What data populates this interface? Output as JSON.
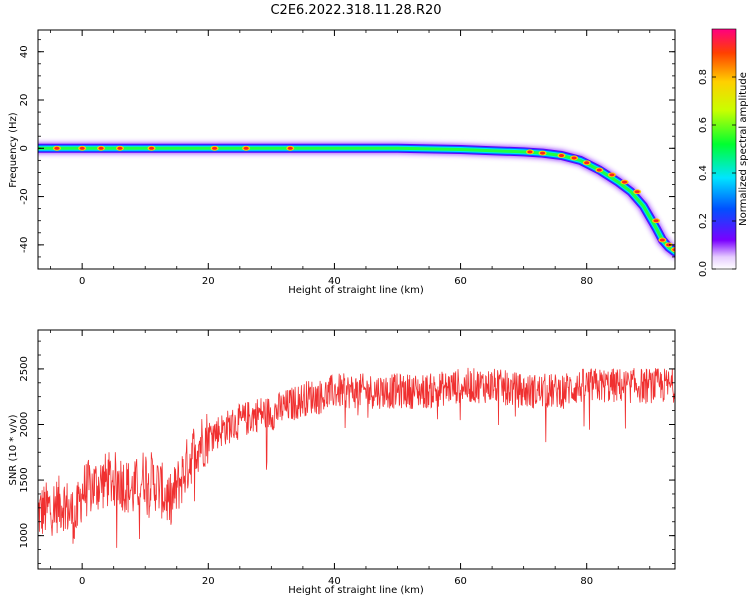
{
  "title": "C2E6.2022.318.11.28.R20",
  "chart_data": [
    {
      "type": "heatmap",
      "xlabel": "Height of straight line (km)",
      "ylabel": "Frequency (Hz)",
      "xlim": [
        -7,
        94
      ],
      "ylim": [
        -50,
        49
      ],
      "xticks": [
        "0",
        "20",
        "40",
        "60",
        "80"
      ],
      "yticks": [
        "-40",
        "-20",
        "0",
        "20",
        "40"
      ],
      "colorbar": {
        "label": "Normalized spectral amplitude",
        "range": [
          0,
          1
        ],
        "ticks": [
          "0.0",
          "0.2",
          "0.4",
          "0.6",
          "0.8"
        ]
      },
      "ridge": {
        "x": [
          -7,
          0,
          10,
          20,
          30,
          40,
          50,
          60,
          65,
          70,
          73,
          76,
          79,
          82,
          85,
          87,
          89,
          91,
          92,
          93,
          94
        ],
        "frequency": [
          0,
          0,
          0,
          0,
          0,
          0,
          0,
          -0.5,
          -1,
          -1.5,
          -2,
          -3,
          -5,
          -9,
          -14,
          -18,
          -24,
          -33,
          -38,
          -41,
          -43
        ]
      }
    },
    {
      "type": "line",
      "xlabel": "Height of straight line (km)",
      "ylabel": "SNR (10 * v/v)",
      "xlim": [
        -7,
        94
      ],
      "ylim": [
        700,
        2850
      ],
      "xticks": [
        "0",
        "20",
        "40",
        "60",
        "80"
      ],
      "yticks": [
        "1000",
        "1500",
        "2000",
        "2500"
      ],
      "color": "#f03030",
      "series": {
        "x": [
          -7,
          -5,
          -3,
          -1,
          0,
          2,
          4,
          6,
          8,
          10,
          12,
          14,
          16,
          18,
          20,
          22,
          24,
          26,
          28,
          30,
          32,
          34,
          36,
          38,
          40,
          45,
          50,
          55,
          60,
          65,
          70,
          75,
          80,
          85,
          90,
          94
        ],
        "values": [
          1200,
          1250,
          1300,
          1150,
          1400,
          1450,
          1500,
          1500,
          1400,
          1550,
          1450,
          1300,
          1550,
          1800,
          1900,
          1950,
          2000,
          2050,
          2100,
          2100,
          2150,
          2200,
          2250,
          2250,
          2300,
          2300,
          2300,
          2300,
          2350,
          2350,
          2300,
          2300,
          2350,
          2350,
          2350,
          2350
        ]
      }
    }
  ]
}
